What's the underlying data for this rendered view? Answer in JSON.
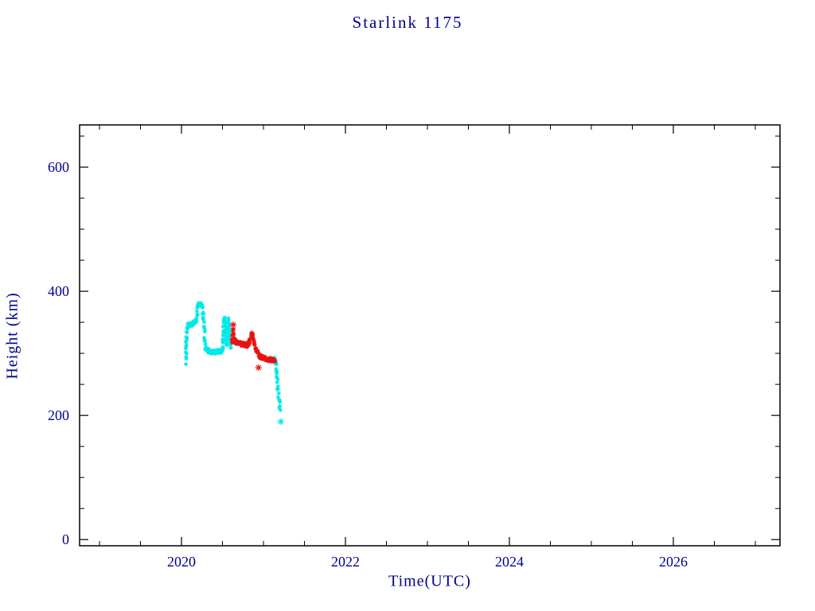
{
  "colors": {
    "background": "#ffffff",
    "text": "#00008b",
    "axis": "#000000"
  },
  "chart_data": {
    "type": "scatter",
    "title": "Starlink 1175",
    "xlabel": "Time(UTC)",
    "ylabel": "Height (km)",
    "xlim": [
      2018.757,
      2027.301
    ],
    "ylim": [
      -10,
      668
    ],
    "xticks": [
      2020,
      2022,
      2024,
      2026
    ],
    "yticks": [
      0,
      200,
      400,
      600
    ],
    "x_minor_step": 0.5,
    "y_minor_step": 50,
    "grid": false,
    "legend": "none",
    "marker": "asterisk",
    "series": [
      {
        "name": "tracked-height-cyan",
        "color": "#00e8e8",
        "spread_km": 3,
        "segments": [
          [
            [
              2020.05,
              285
            ],
            [
              2020.055,
              298
            ],
            [
              2020.06,
              312
            ],
            [
              2020.065,
              328
            ],
            [
              2020.07,
              340
            ],
            [
              2020.08,
              345
            ],
            [
              2020.1,
              347
            ],
            [
              2020.12,
              347
            ],
            [
              2020.14,
              348
            ],
            [
              2020.16,
              350
            ],
            [
              2020.18,
              353
            ],
            [
              2020.19,
              362
            ],
            [
              2020.196,
              372
            ],
            [
              2020.2,
              378
            ],
            [
              2020.22,
              379
            ],
            [
              2020.24,
              378
            ],
            [
              2020.252,
              374
            ],
            [
              2020.262,
              366
            ],
            [
              2020.272,
              352
            ],
            [
              2020.28,
              336
            ],
            [
              2020.286,
              320
            ],
            [
              2020.292,
              310
            ],
            [
              2020.3,
              306
            ],
            [
              2020.33,
              304
            ],
            [
              2020.36,
              302
            ],
            [
              2020.39,
              303
            ],
            [
              2020.42,
              302
            ],
            [
              2020.45,
              303
            ],
            [
              2020.48,
              304
            ],
            [
              2020.5,
              306
            ],
            [
              2020.506,
              320
            ],
            [
              2020.512,
              342
            ],
            [
              2020.518,
              356
            ],
            [
              2020.522,
              360
            ],
            [
              2020.527,
              354
            ],
            [
              2020.532,
              344
            ],
            [
              2020.538,
              332
            ],
            [
              2020.544,
              320
            ],
            [
              2020.55,
              311
            ],
            [
              2020.556,
              322
            ],
            [
              2020.562,
              340
            ],
            [
              2020.568,
              352
            ],
            [
              2020.572,
              356
            ],
            [
              2020.577,
              350
            ],
            [
              2020.583,
              340
            ],
            [
              2020.589,
              326
            ],
            [
              2020.595,
              316
            ],
            [
              2020.602,
              310
            ],
            [
              2020.61,
              308
            ]
          ],
          [
            [
              2021.13,
              291
            ],
            [
              2021.14,
              289
            ],
            [
              2021.15,
              285
            ],
            [
              2021.156,
              277
            ],
            [
              2021.162,
              267
            ],
            [
              2021.168,
              256
            ],
            [
              2021.175,
              246
            ],
            [
              2021.182,
              236
            ],
            [
              2021.19,
              227
            ],
            [
              2021.198,
              216
            ],
            [
              2021.205,
              205
            ]
          ]
        ],
        "outliers": [
          [
            2021.212,
            190
          ]
        ]
      },
      {
        "name": "tracked-height-red",
        "color": "#e81212",
        "spread_km": 3,
        "segments": [
          [
            [
              2020.615,
              316
            ],
            [
              2020.62,
              324
            ],
            [
              2020.626,
              333
            ],
            [
              2020.631,
              340
            ],
            [
              2020.637,
              332
            ],
            [
              2020.643,
              324
            ],
            [
              2020.65,
              320
            ],
            [
              2020.66,
              318
            ],
            [
              2020.68,
              317
            ],
            [
              2020.7,
              316
            ],
            [
              2020.73,
              315
            ],
            [
              2020.76,
              314
            ],
            [
              2020.79,
              313
            ],
            [
              2020.81,
              314
            ],
            [
              2020.828,
              318
            ],
            [
              2020.84,
              325
            ],
            [
              2020.85,
              330
            ],
            [
              2020.86,
              331
            ],
            [
              2020.87,
              327
            ],
            [
              2020.88,
              321
            ],
            [
              2020.89,
              315
            ],
            [
              2020.9,
              310
            ],
            [
              2020.92,
              305
            ],
            [
              2020.94,
              299
            ],
            [
              2020.96,
              295
            ],
            [
              2020.98,
              293
            ],
            [
              2021.0,
              292
            ],
            [
              2021.03,
              291
            ],
            [
              2021.06,
              290
            ],
            [
              2021.09,
              290
            ],
            [
              2021.12,
              289
            ],
            [
              2021.145,
              288
            ]
          ]
        ],
        "outliers": [
          [
            2020.631,
            346
          ],
          [
            2020.94,
            277
          ]
        ]
      }
    ]
  }
}
